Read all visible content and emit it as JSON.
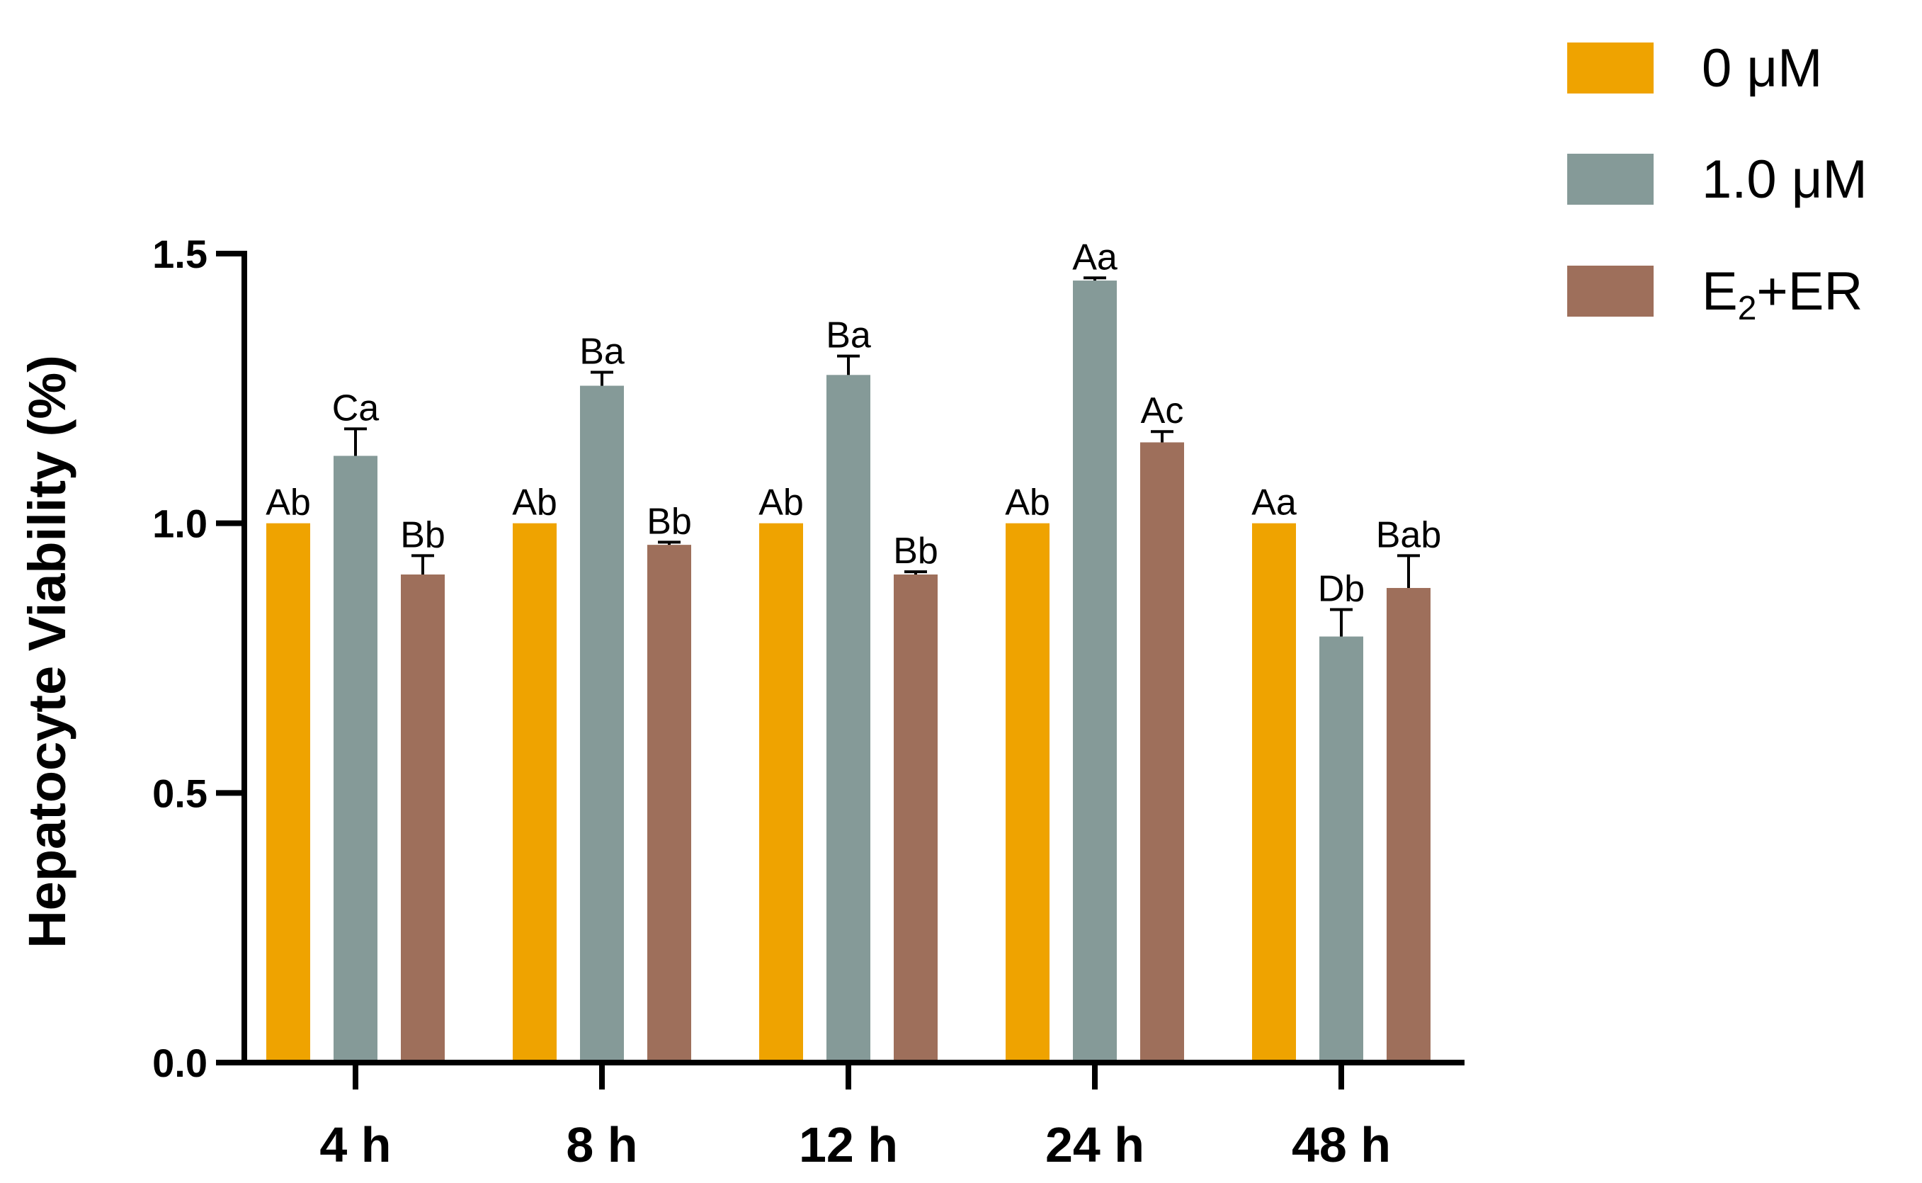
{
  "chart_data": {
    "type": "bar",
    "title": "",
    "xlabel": "",
    "ylabel": "Hepatocyte Viability (%)",
    "ylim": [
      0,
      1.5
    ],
    "yticks": [
      "0.0",
      "0.5",
      "1.0",
      "1.5"
    ],
    "categories": [
      "4 h",
      "8 h",
      "12 h",
      "24 h",
      "48 h"
    ],
    "legend_position": "top-right",
    "grid": false,
    "series": [
      {
        "name": "0 μM",
        "name_parts": {
          "main": "0 μM",
          "sub": "",
          "tail": ""
        },
        "color": "#EFA300",
        "values": [
          1.0,
          1.0,
          1.0,
          1.0,
          1.0
        ],
        "errors": [
          0,
          0,
          0,
          0,
          0
        ],
        "labels": [
          "Ab",
          "Ab",
          "Ab",
          "Ab",
          "Aa"
        ]
      },
      {
        "name": "1.0 μM",
        "name_parts": {
          "main": "1.0 μM",
          "sub": "",
          "tail": ""
        },
        "color": "#859A98",
        "values": [
          1.125,
          1.255,
          1.275,
          1.45,
          0.79
        ],
        "errors": [
          0.05,
          0.025,
          0.035,
          0.005,
          0.05
        ],
        "labels": [
          "Ca",
          "Ba",
          "Ba",
          "Aa",
          "Db"
        ]
      },
      {
        "name": "E2+ER",
        "name_parts": {
          "main": "E",
          "sub": "2",
          "tail": "+ER"
        },
        "color": "#9E6F5B",
        "values": [
          0.905,
          0.96,
          0.905,
          1.15,
          0.88
        ],
        "errors": [
          0.035,
          0.005,
          0.005,
          0.02,
          0.06
        ],
        "labels": [
          "Bb",
          "Bb",
          "Bb",
          "Ac",
          "Bab"
        ]
      }
    ]
  }
}
